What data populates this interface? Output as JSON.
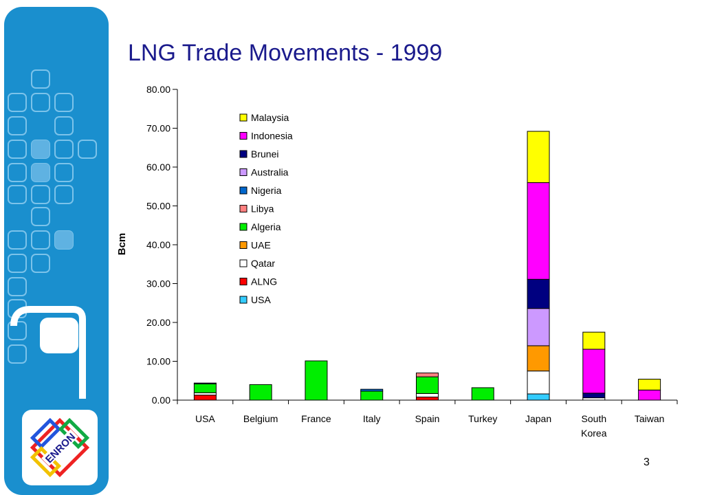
{
  "slide": {
    "title": "LNG Trade Movements - 1999",
    "page_number": "3",
    "logo_text": "ENRON",
    "colors": {
      "sidebar": "#1a8fce",
      "tile": "#5fb2e2",
      "title": "#1a1a8c"
    }
  },
  "chart_data": {
    "type": "bar",
    "stacked": true,
    "title": "LNG Trade Movements - 1999",
    "xlabel": "",
    "ylabel": "Bcm",
    "ylim": [
      0,
      80
    ],
    "yticks": [
      0,
      10,
      20,
      30,
      40,
      50,
      60,
      70,
      80
    ],
    "ytick_labels": [
      "0.00",
      "10.00",
      "20.00",
      "30.00",
      "40.00",
      "50.00",
      "60.00",
      "70.00",
      "80.00"
    ],
    "grid": false,
    "legend_position": "top-left",
    "categories": [
      "USA",
      "Belgium",
      "France",
      "Italy",
      "Spain",
      "Turkey",
      "Japan",
      "South Korea",
      "Taiwan"
    ],
    "category_labels": [
      [
        "USA"
      ],
      [
        "Belgium"
      ],
      [
        "France"
      ],
      [
        "Italy"
      ],
      [
        "Spain"
      ],
      [
        "Turkey"
      ],
      [
        "Japan"
      ],
      [
        "South",
        "Korea"
      ],
      [
        "Taiwan"
      ]
    ],
    "series": [
      {
        "name": "USA",
        "color": "#33ccff",
        "values": [
          0,
          0,
          0,
          0,
          0,
          0,
          1.6,
          0,
          0
        ]
      },
      {
        "name": "ALNG",
        "color": "#ff0000",
        "values": [
          1.3,
          0,
          0,
          0,
          0.8,
          0,
          0,
          0,
          0
        ]
      },
      {
        "name": "Qatar",
        "color": "#ffffff",
        "values": [
          0.6,
          0,
          0,
          0,
          0.9,
          0,
          5.9,
          0.6,
          0
        ]
      },
      {
        "name": "UAE",
        "color": "#ff9900",
        "values": [
          0,
          0,
          0,
          0,
          0,
          0,
          6.5,
          0,
          0
        ]
      },
      {
        "name": "Algeria",
        "color": "#00ee00",
        "values": [
          2.3,
          4.0,
          10.1,
          2.3,
          4.3,
          3.2,
          0,
          0,
          0
        ]
      },
      {
        "name": "Libya",
        "color": "#ff8080",
        "values": [
          0,
          0,
          0,
          0,
          1.0,
          0,
          0,
          0,
          0
        ]
      },
      {
        "name": "Nigeria",
        "color": "#0066cc",
        "values": [
          0.2,
          0,
          0,
          0.5,
          0,
          0,
          0,
          0,
          0
        ]
      },
      {
        "name": "Australia",
        "color": "#cc99ff",
        "values": [
          0,
          0,
          0,
          0,
          0,
          0,
          9.6,
          0,
          0
        ]
      },
      {
        "name": "Brunei",
        "color": "#000080",
        "values": [
          0,
          0,
          0,
          0,
          0,
          0,
          7.5,
          1.2,
          0
        ]
      },
      {
        "name": "Indonesia",
        "color": "#ff00ff",
        "values": [
          0,
          0,
          0,
          0,
          0,
          0,
          24.9,
          11.3,
          2.6
        ]
      },
      {
        "name": "Malaysia",
        "color": "#ffff00",
        "values": [
          0,
          0,
          0,
          0,
          0,
          0,
          13.2,
          4.4,
          2.8
        ]
      }
    ]
  }
}
